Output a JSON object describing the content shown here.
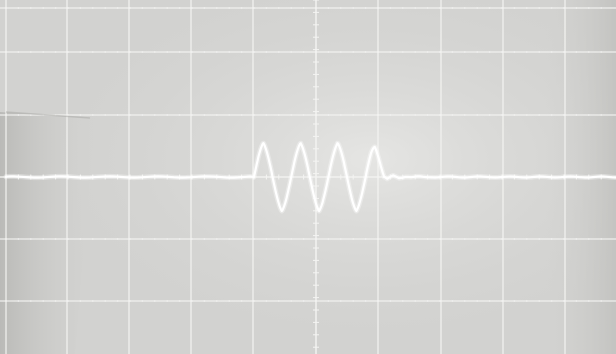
{
  "screen": {
    "colors": {
      "background": "#d4d4d2",
      "grid": "#f4f4f2",
      "trace": "#ffffff",
      "shadow": "#a9a9a6"
    },
    "grid": {
      "major_divisions_x": 10,
      "major_divisions_y": 6,
      "minor_ticks_per_division": 5
    }
  },
  "trace": {
    "description_free": true,
    "baseline_level_divisions": 0,
    "burst": {
      "start_division": 4.0,
      "end_division": 6.1,
      "cycles": 3.5,
      "amplitude_divisions": 0.55
    }
  }
}
